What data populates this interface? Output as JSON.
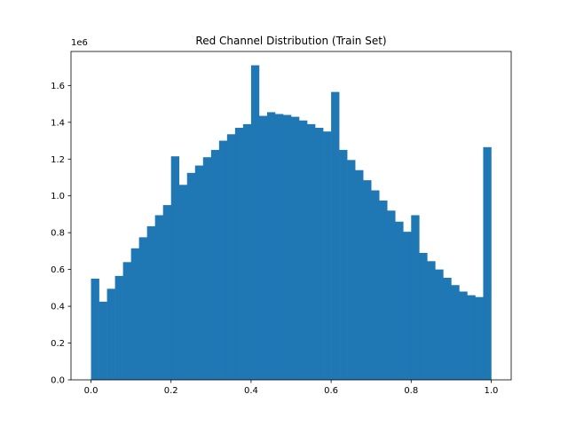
{
  "chart_data": {
    "type": "bar",
    "title": "Red Channel Distribution (Train Set)",
    "xlabel": "",
    "ylabel": "",
    "offset_label": "1e6",
    "bar_color": "#1f77b4",
    "xlim": [
      -0.05,
      1.05
    ],
    "ylim": [
      0,
      1.785
    ],
    "x_ticks": [
      "0.0",
      "0.2",
      "0.4",
      "0.6",
      "0.8",
      "1.0"
    ],
    "y_ticks": [
      "0.0",
      "0.2",
      "0.4",
      "0.6",
      "0.8",
      "1.0",
      "1.2",
      "1.4",
      "1.6"
    ],
    "grid": false,
    "bin_start": 0.0,
    "bin_width": 0.02,
    "values": [
      0.55,
      0.425,
      0.495,
      0.565,
      0.64,
      0.715,
      0.775,
      0.835,
      0.895,
      0.95,
      1.215,
      1.06,
      1.125,
      1.165,
      1.21,
      1.25,
      1.3,
      1.335,
      1.37,
      1.39,
      1.71,
      1.435,
      1.455,
      1.445,
      1.44,
      1.43,
      1.41,
      1.39,
      1.37,
      1.35,
      1.565,
      1.25,
      1.195,
      1.14,
      1.085,
      1.03,
      0.975,
      0.92,
      0.86,
      0.805,
      0.895,
      0.69,
      0.645,
      0.6,
      0.555,
      0.515,
      0.48,
      0.46,
      0.45,
      1.265
    ]
  }
}
